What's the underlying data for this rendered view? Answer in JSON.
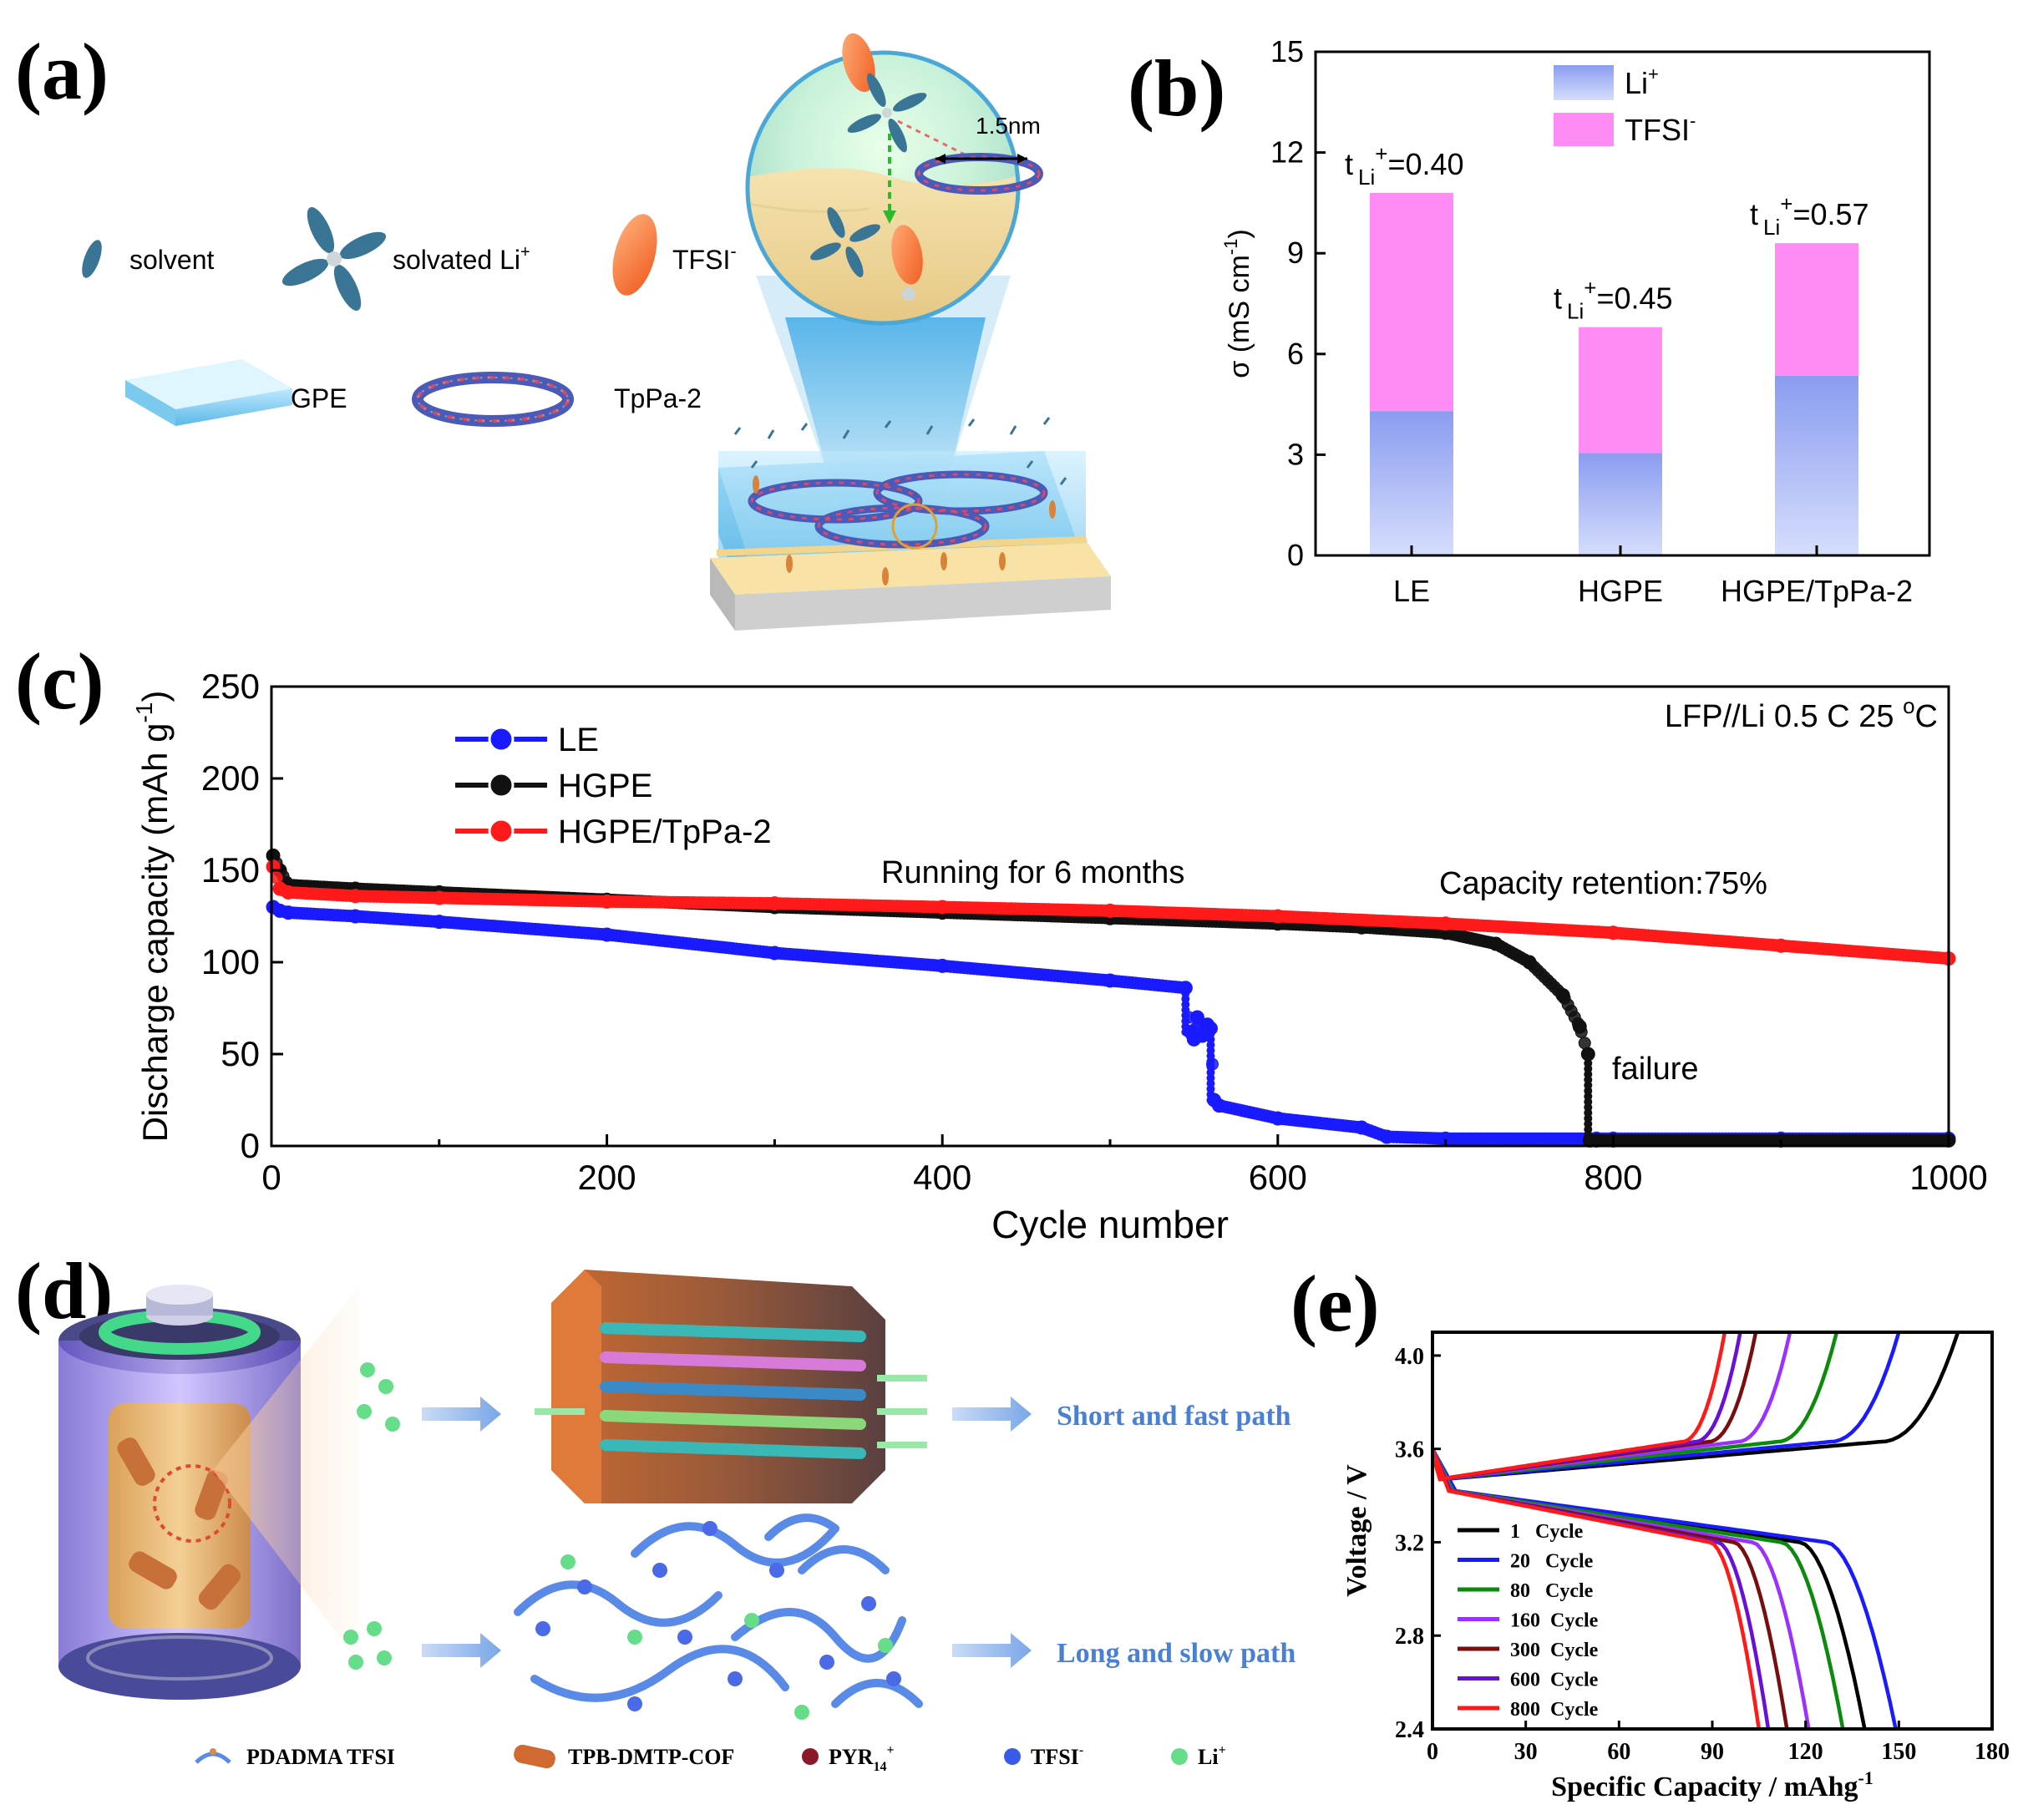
{
  "panels": {
    "a": {
      "letter": "(a)",
      "legend": {
        "solvent": "solvent",
        "solvated": "solvated Li",
        "solvated_sup": "+",
        "tfsi": "TFSI",
        "tfsi_sup": "-",
        "gpe": "GPE",
        "tppa": "TpPa-2"
      },
      "pore_label": "1.5nm"
    },
    "b": {
      "letter": "(b)"
    },
    "c": {
      "letter": "(c)"
    },
    "d": {
      "letter": "(d)",
      "short_path": "Short and fast path",
      "long_path": "Long and slow path",
      "legend": {
        "pdadma": "PDADMA TFSI",
        "cof": "TPB-DMTP-COF",
        "pyr": "PYR",
        "pyr_sub": "14",
        "pyr_sup": "+",
        "tfsi": "TFSI",
        "tfsi_sup": "-",
        "li": "Li",
        "li_sup": "+"
      }
    },
    "e": {
      "letter": "(e)"
    }
  },
  "colors": {
    "li_bar": "#aab8f5",
    "tfsi_bar": "#ff8cf5",
    "le": "#1a1aff",
    "hgpe": "#111111",
    "hgpe_tppa": "#ff1a1a",
    "path_text": "#4a7fd6"
  },
  "chart_data": [
    {
      "id": "b",
      "type": "bar",
      "stacked": true,
      "categories": [
        "LE",
        "HGPE",
        "HGPE/TpPa-2"
      ],
      "series": [
        {
          "name": "Li+",
          "name_base": "Li",
          "name_sup": "+",
          "values": [
            4.3,
            3.05,
            5.35
          ]
        },
        {
          "name": "TFSI-",
          "name_base": "TFSI",
          "name_sup": "-",
          "values": [
            6.5,
            3.75,
            3.95
          ]
        }
      ],
      "annotations": [
        {
          "category": "LE",
          "prefix": "t",
          "sub": "Li",
          "sup": "+",
          "value": "=0.40"
        },
        {
          "category": "HGPE",
          "prefix": "t",
          "sub": "Li",
          "sup": "+",
          "value": "=0.45"
        },
        {
          "category": "HGPE/TpPa-2",
          "prefix": "t",
          "sub": "Li",
          "sup": "+",
          "value": "=0.57"
        }
      ],
      "ylabel": "σ (mS cm",
      "ylabel_sup": "-1",
      "ylabel_end": ")",
      "ylim": [
        0,
        15
      ],
      "yticks": [
        0,
        3,
        6,
        9,
        12,
        15
      ]
    },
    {
      "id": "c",
      "type": "scatter",
      "xlabel": "Cycle number",
      "ylabel": "Discharge capacity (mAh g",
      "ylabel_sup": "-1",
      "ylabel_end": ")",
      "xlim": [
        0,
        1000
      ],
      "ylim": [
        0,
        250
      ],
      "xticks": [
        0,
        200,
        400,
        600,
        800,
        1000
      ],
      "yticks": [
        0,
        50,
        100,
        150,
        200,
        250
      ],
      "condition_text": "LFP//Li  0.5 C  25 ",
      "condition_sup": "o",
      "condition_end": "C",
      "annotations": {
        "running": "Running for 6 months",
        "retention": "Capacity retention:75%",
        "failure": "failure"
      },
      "series": [
        {
          "name": "LE",
          "x": [
            1,
            5,
            10,
            50,
            100,
            200,
            300,
            400,
            500,
            545,
            548,
            550,
            552,
            555,
            558,
            560,
            562,
            565,
            600,
            650,
            665,
            700,
            790,
            800,
            900,
            1000
          ],
          "y": [
            130,
            128,
            127,
            125,
            122,
            115,
            105,
            98,
            90,
            86,
            62,
            58,
            70,
            60,
            66,
            64,
            25,
            22,
            15,
            10,
            5,
            4,
            4,
            4,
            4,
            4
          ]
        },
        {
          "name": "HGPE",
          "x": [
            1,
            5,
            10,
            50,
            100,
            200,
            300,
            400,
            500,
            600,
            650,
            700,
            730,
            750,
            770,
            780,
            785,
            786,
            790,
            800,
            900,
            1000
          ],
          "y": [
            158,
            150,
            142,
            140,
            138,
            134,
            130,
            127,
            124,
            121,
            119,
            116,
            110,
            100,
            82,
            65,
            50,
            3,
            3,
            3,
            3,
            3
          ]
        },
        {
          "name": "HGPE/TpPa-2",
          "x": [
            1,
            5,
            10,
            50,
            100,
            200,
            300,
            400,
            500,
            600,
            700,
            800,
            900,
            1000
          ],
          "y": [
            152,
            140,
            138,
            136,
            135,
            133,
            132,
            130,
            128,
            125,
            121,
            116,
            109,
            102
          ]
        }
      ]
    },
    {
      "id": "e",
      "type": "line",
      "xlabel": "Specific Capacity / mAhg",
      "xlabel_sup": "-1",
      "ylabel": "Voltage / V",
      "xlim": [
        0,
        180
      ],
      "ylim": [
        2.4,
        4.1
      ],
      "xticks": [
        0,
        30,
        60,
        90,
        120,
        150,
        180
      ],
      "yticks": [
        2.4,
        2.8,
        3.2,
        3.6,
        4.0
      ],
      "series": [
        {
          "name": "1   Cycle",
          "charge_cap": 169,
          "discharge_cap": 139,
          "color": "#000000"
        },
        {
          "name": "20   Cycle",
          "charge_cap": 150,
          "discharge_cap": 149,
          "color": "#1a1aff"
        },
        {
          "name": "80   Cycle",
          "charge_cap": 130,
          "discharge_cap": 132,
          "color": "#0b8a0b"
        },
        {
          "name": "160  Cycle",
          "charge_cap": 115,
          "discharge_cap": 121,
          "color": "#9b30ff"
        },
        {
          "name": "300  Cycle",
          "charge_cap": 104,
          "discharge_cap": 114,
          "color": "#7a0e0e"
        },
        {
          "name": "600  Cycle",
          "charge_cap": 99,
          "discharge_cap": 108,
          "color": "#6a0fd6"
        },
        {
          "name": "800  Cycle",
          "charge_cap": 94,
          "discharge_cap": 105,
          "color": "#ff1a1a"
        }
      ]
    }
  ]
}
